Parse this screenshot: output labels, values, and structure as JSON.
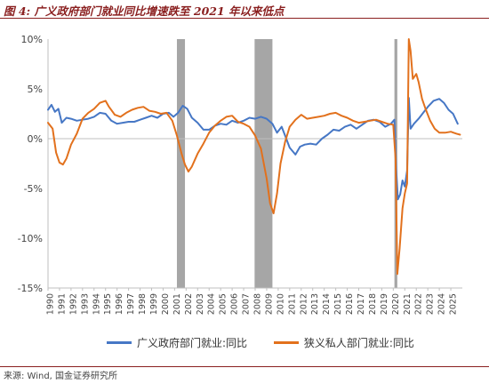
{
  "header": {
    "title": "图 4:  广义政府部门就业同比增速跌至 2021 年以来低点"
  },
  "footer": {
    "source": "来源:  Wind,  国金证券研究所"
  },
  "colors": {
    "government": "#4677c5",
    "private": "#e2711d",
    "recession": "#a6a6a6",
    "title": "#8a1f1f"
  },
  "chart_data": {
    "type": "line",
    "title": "",
    "xlabel": "",
    "ylabel": "",
    "ylim": [
      -15,
      10
    ],
    "yticks": [
      "10%",
      "5%",
      "0%",
      "-5%",
      "-10%",
      "-15%"
    ],
    "ytick_values": [
      10,
      5,
      0,
      -5,
      -10,
      -15
    ],
    "xlim": [
      1990,
      2026
    ],
    "xticks": [
      "1990",
      "1991",
      "1992",
      "1993",
      "1994",
      "1995",
      "1996",
      "1997",
      "1998",
      "1999",
      "2000",
      "2001",
      "2002",
      "2003",
      "2004",
      "2005",
      "2006",
      "2007",
      "2008",
      "2009",
      "2010",
      "2011",
      "2012",
      "2013",
      "2014",
      "2015",
      "2016",
      "2017",
      "2018",
      "2019",
      "2020",
      "2021",
      "2022",
      "2023",
      "2024",
      "2025"
    ],
    "grid": false,
    "legend_position": "bottom",
    "recessions": [
      {
        "start": 2001.2,
        "end": 2001.9
      },
      {
        "start": 2007.95,
        "end": 2009.5
      },
      {
        "start": 2020.1,
        "end": 2020.35
      }
    ],
    "series": [
      {
        "name": "广义政府部门就业:同比",
        "points": [
          [
            1990.0,
            2.9
          ],
          [
            1990.3,
            3.4
          ],
          [
            1990.6,
            2.7
          ],
          [
            1990.9,
            3.0
          ],
          [
            1991.2,
            1.6
          ],
          [
            1991.6,
            2.1
          ],
          [
            1992.0,
            2.0
          ],
          [
            1992.5,
            1.8
          ],
          [
            1993.0,
            1.9
          ],
          [
            1993.5,
            2.0
          ],
          [
            1994.0,
            2.2
          ],
          [
            1994.5,
            2.6
          ],
          [
            1995.0,
            2.5
          ],
          [
            1995.5,
            1.8
          ],
          [
            1996.0,
            1.5
          ],
          [
            1996.5,
            1.6
          ],
          [
            1997.0,
            1.7
          ],
          [
            1997.5,
            1.7
          ],
          [
            1998.0,
            1.9
          ],
          [
            1998.5,
            2.1
          ],
          [
            1999.0,
            2.3
          ],
          [
            1999.5,
            2.1
          ],
          [
            2000.0,
            2.5
          ],
          [
            2000.5,
            2.6
          ],
          [
            2000.9,
            2.2
          ],
          [
            2001.3,
            2.6
          ],
          [
            2001.7,
            3.3
          ],
          [
            2002.1,
            3.0
          ],
          [
            2002.5,
            2.1
          ],
          [
            2003.0,
            1.6
          ],
          [
            2003.5,
            0.9
          ],
          [
            2004.0,
            0.9
          ],
          [
            2004.5,
            1.3
          ],
          [
            2005.0,
            1.5
          ],
          [
            2005.5,
            1.4
          ],
          [
            2006.0,
            1.8
          ],
          [
            2006.5,
            1.6
          ],
          [
            2007.0,
            1.8
          ],
          [
            2007.5,
            2.1
          ],
          [
            2008.0,
            2.0
          ],
          [
            2008.5,
            2.2
          ],
          [
            2009.0,
            2.0
          ],
          [
            2009.5,
            1.5
          ],
          [
            2009.9,
            0.6
          ],
          [
            2010.3,
            1.2
          ],
          [
            2010.6,
            0.3
          ],
          [
            2011.0,
            -0.9
          ],
          [
            2011.5,
            -1.6
          ],
          [
            2011.9,
            -0.8
          ],
          [
            2012.3,
            -0.6
          ],
          [
            2012.8,
            -0.5
          ],
          [
            2013.3,
            -0.6
          ],
          [
            2013.8,
            0.0
          ],
          [
            2014.3,
            0.4
          ],
          [
            2014.8,
            0.9
          ],
          [
            2015.3,
            0.8
          ],
          [
            2015.8,
            1.2
          ],
          [
            2016.3,
            1.4
          ],
          [
            2016.8,
            1.0
          ],
          [
            2017.3,
            1.4
          ],
          [
            2017.8,
            1.8
          ],
          [
            2018.3,
            1.9
          ],
          [
            2018.8,
            1.7
          ],
          [
            2019.3,
            1.2
          ],
          [
            2019.8,
            1.5
          ],
          [
            2020.1,
            1.9
          ],
          [
            2020.25,
            -3.0
          ],
          [
            2020.4,
            -6.1
          ],
          [
            2020.6,
            -5.6
          ],
          [
            2020.8,
            -4.2
          ],
          [
            2021.0,
            -4.8
          ],
          [
            2021.2,
            -3.2
          ],
          [
            2021.35,
            4.1
          ],
          [
            2021.5,
            1.0
          ],
          [
            2021.8,
            1.5
          ],
          [
            2022.2,
            2.0
          ],
          [
            2022.6,
            2.6
          ],
          [
            2023.0,
            3.2
          ],
          [
            2023.5,
            3.8
          ],
          [
            2024.0,
            4.0
          ],
          [
            2024.4,
            3.6
          ],
          [
            2024.8,
            2.9
          ],
          [
            2025.2,
            2.5
          ],
          [
            2025.6,
            1.5
          ]
        ]
      },
      {
        "name": "狭义私人部门就业:同比",
        "points": [
          [
            1990.0,
            1.6
          ],
          [
            1990.4,
            1.0
          ],
          [
            1990.7,
            -1.4
          ],
          [
            1991.0,
            -2.4
          ],
          [
            1991.3,
            -2.6
          ],
          [
            1991.6,
            -2.0
          ],
          [
            1992.0,
            -0.6
          ],
          [
            1992.5,
            0.5
          ],
          [
            1993.0,
            2.0
          ],
          [
            1993.5,
            2.6
          ],
          [
            1994.0,
            3.0
          ],
          [
            1994.5,
            3.6
          ],
          [
            1995.0,
            3.8
          ],
          [
            1995.3,
            3.2
          ],
          [
            1995.8,
            2.4
          ],
          [
            1996.3,
            2.2
          ],
          [
            1996.8,
            2.6
          ],
          [
            1997.3,
            2.9
          ],
          [
            1997.8,
            3.1
          ],
          [
            1998.3,
            3.2
          ],
          [
            1998.8,
            2.8
          ],
          [
            1999.3,
            2.7
          ],
          [
            1999.8,
            2.5
          ],
          [
            2000.3,
            2.6
          ],
          [
            2000.8,
            1.8
          ],
          [
            2001.2,
            0.3
          ],
          [
            2001.6,
            -1.5
          ],
          [
            2001.9,
            -2.6
          ],
          [
            2002.2,
            -3.3
          ],
          [
            2002.5,
            -2.8
          ],
          [
            2003.0,
            -1.5
          ],
          [
            2003.5,
            -0.5
          ],
          [
            2004.0,
            0.6
          ],
          [
            2004.5,
            1.3
          ],
          [
            2005.0,
            1.8
          ],
          [
            2005.5,
            2.2
          ],
          [
            2006.0,
            2.3
          ],
          [
            2006.5,
            1.7
          ],
          [
            2007.0,
            1.5
          ],
          [
            2007.5,
            1.2
          ],
          [
            2008.0,
            0.3
          ],
          [
            2008.5,
            -1.0
          ],
          [
            2009.0,
            -4.0
          ],
          [
            2009.3,
            -6.5
          ],
          [
            2009.6,
            -7.5
          ],
          [
            2009.9,
            -5.5
          ],
          [
            2010.2,
            -2.5
          ],
          [
            2010.6,
            -0.3
          ],
          [
            2011.0,
            1.2
          ],
          [
            2011.5,
            1.9
          ],
          [
            2012.0,
            2.4
          ],
          [
            2012.5,
            2.0
          ],
          [
            2013.0,
            2.1
          ],
          [
            2013.5,
            2.2
          ],
          [
            2014.0,
            2.3
          ],
          [
            2014.5,
            2.5
          ],
          [
            2015.0,
            2.6
          ],
          [
            2015.5,
            2.3
          ],
          [
            2016.0,
            2.1
          ],
          [
            2016.5,
            1.8
          ],
          [
            2017.0,
            1.6
          ],
          [
            2017.5,
            1.7
          ],
          [
            2018.0,
            1.8
          ],
          [
            2018.5,
            1.9
          ],
          [
            2019.0,
            1.7
          ],
          [
            2019.5,
            1.5
          ],
          [
            2020.0,
            1.4
          ],
          [
            2020.2,
            -2.0
          ],
          [
            2020.35,
            -13.6
          ],
          [
            2020.55,
            -11.0
          ],
          [
            2020.8,
            -7.0
          ],
          [
            2021.0,
            -5.5
          ],
          [
            2021.2,
            -4.5
          ],
          [
            2021.35,
            10.0
          ],
          [
            2021.5,
            8.8
          ],
          [
            2021.7,
            6.0
          ],
          [
            2022.0,
            6.5
          ],
          [
            2022.2,
            5.7
          ],
          [
            2022.5,
            4.0
          ],
          [
            2022.8,
            3.0
          ],
          [
            2023.2,
            1.8
          ],
          [
            2023.6,
            1.0
          ],
          [
            2024.0,
            0.6
          ],
          [
            2024.5,
            0.6
          ],
          [
            2025.0,
            0.7
          ],
          [
            2025.5,
            0.5
          ],
          [
            2025.8,
            0.4
          ]
        ]
      }
    ]
  }
}
